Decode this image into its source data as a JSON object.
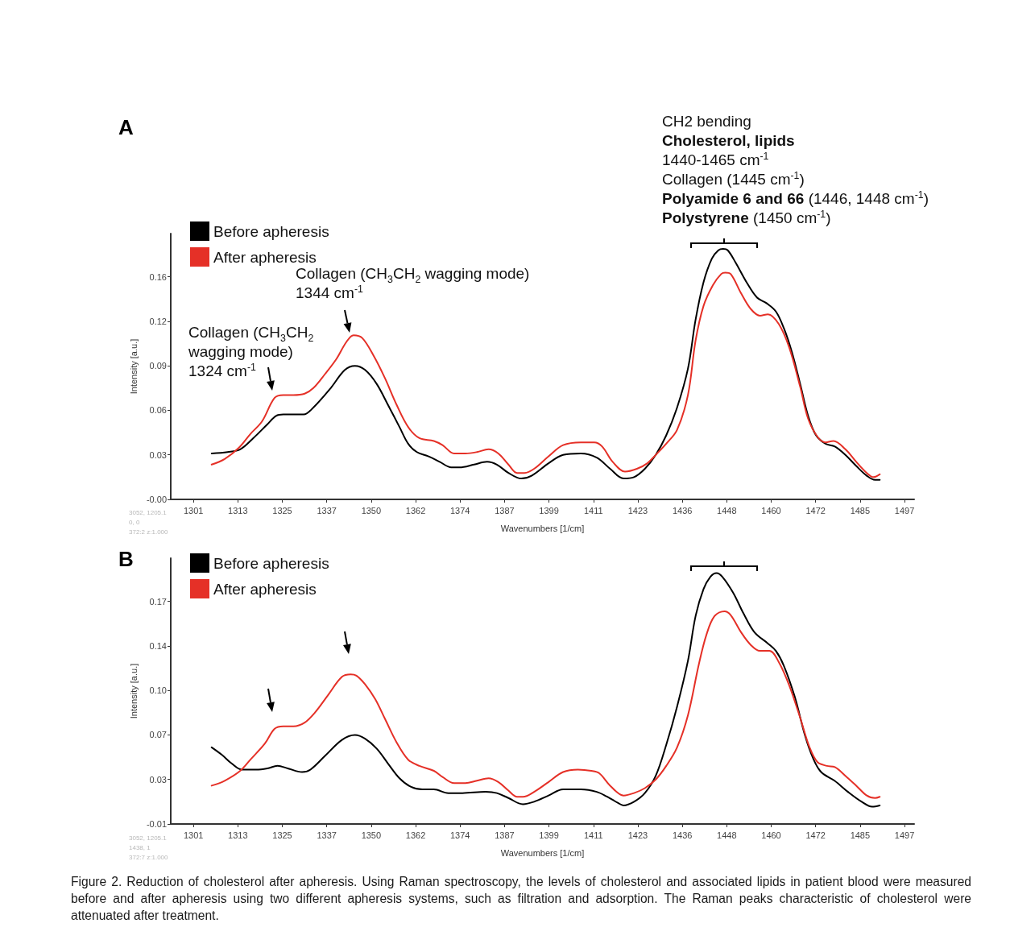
{
  "chart_data": [
    {
      "type": "line",
      "title": "A",
      "xlabel": "Wavenumbers [1/cm]",
      "ylabel": "Intensity [a.u.]",
      "xlim": [
        1294.3,
        1499.7
      ],
      "ylim": [
        -0.004,
        0.187
      ],
      "xticks": [
        {
          "value": 1300.56,
          "label": "1301"
        },
        {
          "value": 1312.84,
          "label": "1313"
        },
        {
          "value": 1325.12,
          "label": "1325"
        },
        {
          "value": 1337.4,
          "label": "1337"
        },
        {
          "value": 1349.68,
          "label": "1350"
        },
        {
          "value": 1361.96,
          "label": "1362"
        },
        {
          "value": 1374.24,
          "label": "1374"
        },
        {
          "value": 1386.52,
          "label": "1387"
        },
        {
          "value": 1398.8,
          "label": "1399"
        },
        {
          "value": 1411.08,
          "label": "1411"
        },
        {
          "value": 1423.36,
          "label": "1423"
        },
        {
          "value": 1435.64,
          "label": "1436"
        },
        {
          "value": 1447.92,
          "label": "1448"
        },
        {
          "value": 1460.2,
          "label": "1460"
        },
        {
          "value": 1472.48,
          "label": "1472"
        },
        {
          "value": 1484.76,
          "label": "1485"
        },
        {
          "value": 1497.04,
          "label": "1497"
        }
      ],
      "yticks": [
        {
          "value": -0.004,
          "label": "-0.00"
        },
        {
          "value": 0.028,
          "label": "0.03"
        },
        0.06,
        {
          "value": 0.092,
          "label": "0.09"
        },
        {
          "value": 0.124,
          "label": "0.12"
        },
        {
          "value": 0.156,
          "label": "0.16"
        }
      ],
      "legend": "top left",
      "series": [
        {
          "name": "Before apheresis",
          "color": "#000000",
          "x": [
            1305.6,
            1310.0,
            1313.5,
            1317.1,
            1321.0,
            1323.4,
            1325.4,
            1328.2,
            1331.0,
            1333.7,
            1338.5,
            1342.4,
            1345.2,
            1348.0,
            1351.2,
            1354.3,
            1357.5,
            1359.9,
            1362.3,
            1365.4,
            1368.6,
            1371.8,
            1374.1,
            1378.1,
            1381.7,
            1384.4,
            1387.6,
            1391.2,
            1394.0,
            1398.7,
            1402.7,
            1407.6,
            1412.0,
            1415.7,
            1419.4,
            1422.3,
            1425.3,
            1428.3,
            1431.2,
            1434.2,
            1437.2,
            1439.3,
            1441.5,
            1443.8,
            1445.6,
            1446.9,
            1448.2,
            1450.4,
            1453.4,
            1456.3,
            1458.9,
            1461.5,
            1463.7,
            1465.9,
            1468.2,
            1470.4,
            1472.6,
            1475.2,
            1477.8,
            1480.7,
            1483.7,
            1486.6,
            1488.9,
            1490.2
          ],
          "values": [
            0.029,
            0.03,
            0.032,
            0.04,
            0.05,
            0.056,
            0.057,
            0.057,
            0.057,
            0.062,
            0.076,
            0.089,
            0.092,
            0.089,
            0.079,
            0.064,
            0.048,
            0.036,
            0.03,
            0.027,
            0.023,
            0.019,
            0.019,
            0.021,
            0.023,
            0.021,
            0.015,
            0.011,
            0.013,
            0.022,
            0.028,
            0.029,
            0.026,
            0.018,
            0.011,
            0.012,
            0.018,
            0.028,
            0.042,
            0.062,
            0.09,
            0.125,
            0.152,
            0.169,
            0.175,
            0.176,
            0.175,
            0.166,
            0.152,
            0.141,
            0.137,
            0.131,
            0.119,
            0.102,
            0.079,
            0.056,
            0.042,
            0.036,
            0.034,
            0.028,
            0.02,
            0.013,
            0.01,
            0.01
          ]
        },
        {
          "name": "After apheresis",
          "color": "#e53027",
          "x": [
            1305.6,
            1309.2,
            1313.1,
            1316.3,
            1319.5,
            1323.0,
            1325.4,
            1328.2,
            1331.3,
            1333.7,
            1336.9,
            1340.1,
            1342.8,
            1344.8,
            1347.2,
            1350.4,
            1353.5,
            1356.7,
            1359.9,
            1363.0,
            1367.0,
            1369.4,
            1372.6,
            1375.7,
            1378.9,
            1382.1,
            1384.8,
            1387.6,
            1390.0,
            1392.0,
            1394.7,
            1398.7,
            1402.7,
            1407.6,
            1411.3,
            1413.5,
            1416.4,
            1419.8,
            1423.1,
            1426.0,
            1428.3,
            1431.2,
            1434.2,
            1437.2,
            1439.3,
            1441.5,
            1444.1,
            1446.4,
            1447.5,
            1449.0,
            1451.9,
            1454.5,
            1457.1,
            1459.3,
            1462.3,
            1465.2,
            1468.2,
            1470.4,
            1473.0,
            1475.2,
            1477.4,
            1480.7,
            1483.7,
            1486.6,
            1488.5,
            1490.2
          ],
          "values": [
            0.021,
            0.025,
            0.033,
            0.043,
            0.052,
            0.069,
            0.071,
            0.071,
            0.072,
            0.076,
            0.086,
            0.097,
            0.109,
            0.114,
            0.112,
            0.099,
            0.083,
            0.064,
            0.048,
            0.04,
            0.038,
            0.035,
            0.029,
            0.029,
            0.03,
            0.032,
            0.029,
            0.021,
            0.015,
            0.015,
            0.018,
            0.027,
            0.035,
            0.037,
            0.037,
            0.034,
            0.023,
            0.016,
            0.018,
            0.022,
            0.028,
            0.036,
            0.046,
            0.071,
            0.11,
            0.135,
            0.15,
            0.158,
            0.159,
            0.158,
            0.144,
            0.133,
            0.128,
            0.129,
            0.122,
            0.105,
            0.077,
            0.054,
            0.041,
            0.037,
            0.038,
            0.032,
            0.023,
            0.015,
            0.012,
            0.014
          ]
        }
      ],
      "annotations": [
        "CH2 bending",
        "Cholesterol, lipids",
        "1440-1465 cm$^{-1}$",
        "Collagen (1445 cm$^{-1}$)",
        "Polyamide 6 and 66",
        "(1446, 1448 cm$^{-1}$)",
        "Polystyrene",
        "(1450 cm$^{-1}$)",
        "Collagen (CH$_{3}$CH$_{2}$ wagging mode) 1344 cm$^{-1}$",
        "Collagen (CH$_{3}$CH$_{2}$ wagging mode) 1324 cm$^{-1}$",
        "3052, 1205.1",
        "0, 0",
        "372:2 z:1.000"
      ]
    },
    {
      "type": "line",
      "title": "B",
      "xlabel": "Wavenumbers [1/cm]",
      "ylabel": "Intensity [a.u.]",
      "xlim": [
        1294.3,
        1499.7
      ],
      "ylim": [
        -0.006,
        0.209
      ],
      "xticks": [
        {
          "value": 1300.56,
          "label": "1301"
        },
        {
          "value": 1312.84,
          "label": "1313"
        },
        {
          "value": 1325.12,
          "label": "1325"
        },
        {
          "value": 1337.4,
          "label": "1337"
        },
        {
          "value": 1349.68,
          "label": "1350"
        },
        {
          "value": 1361.96,
          "label": "1362"
        },
        {
          "value": 1374.24,
          "label": "1374"
        },
        {
          "value": 1386.52,
          "label": "1387"
        },
        {
          "value": 1398.8,
          "label": "1399"
        },
        {
          "value": 1411.08,
          "label": "1411"
        },
        {
          "value": 1423.36,
          "label": "1423"
        },
        {
          "value": 1435.64,
          "label": "1436"
        },
        {
          "value": 1447.92,
          "label": "1448"
        },
        {
          "value": 1460.2,
          "label": "1460"
        },
        {
          "value": 1472.48,
          "label": "1472"
        },
        {
          "value": 1484.76,
          "label": "1485"
        },
        {
          "value": 1497.04,
          "label": "1497"
        }
      ],
      "yticks": [
        {
          "value": -0.006,
          "label": "-0.01"
        },
        0.03,
        {
          "value": 0.066,
          "label": "0.07"
        },
        {
          "value": 0.102,
          "label": "0.10"
        },
        {
          "value": 0.138,
          "label": "0.14"
        },
        {
          "value": 0.174,
          "label": "0.17"
        }
      ],
      "legend": "top left",
      "series": [
        {
          "name": "Before apheresis",
          "color": "#000000",
          "x": [
            1305.6,
            1308.4,
            1311.1,
            1313.9,
            1317.9,
            1321.0,
            1323.8,
            1326.6,
            1330.6,
            1332.9,
            1336.9,
            1341.6,
            1345.2,
            1348.0,
            1351.2,
            1354.3,
            1357.5,
            1360.7,
            1363.8,
            1367.0,
            1371.0,
            1374.9,
            1381.3,
            1384.4,
            1387.6,
            1391.6,
            1394.7,
            1398.7,
            1402.7,
            1407.6,
            1412.0,
            1414.9,
            1417.9,
            1419.4,
            1422.3,
            1425.3,
            1428.3,
            1431.2,
            1434.2,
            1437.2,
            1439.3,
            1441.5,
            1443.4,
            1445.1,
            1446.7,
            1449.7,
            1452.6,
            1455.6,
            1459.3,
            1461.5,
            1463.7,
            1466.7,
            1469.6,
            1471.8,
            1474.0,
            1477.7,
            1481.4,
            1485.2,
            1488.1,
            1490.2
          ],
          "values": [
            0.056,
            0.05,
            0.043,
            0.038,
            0.038,
            0.039,
            0.041,
            0.039,
            0.036,
            0.038,
            0.049,
            0.062,
            0.066,
            0.063,
            0.055,
            0.043,
            0.031,
            0.024,
            0.022,
            0.022,
            0.019,
            0.019,
            0.02,
            0.019,
            0.015,
            0.01,
            0.012,
            0.017,
            0.022,
            0.022,
            0.02,
            0.016,
            0.011,
            0.009,
            0.012,
            0.019,
            0.033,
            0.058,
            0.089,
            0.126,
            0.162,
            0.184,
            0.194,
            0.197,
            0.194,
            0.181,
            0.164,
            0.149,
            0.14,
            0.134,
            0.122,
            0.097,
            0.065,
            0.047,
            0.036,
            0.029,
            0.02,
            0.012,
            0.008,
            0.009
          ]
        },
        {
          "name": "After apheresis",
          "color": "#e53027",
          "x": [
            1305.6,
            1309.2,
            1313.5,
            1316.3,
            1320.3,
            1323.0,
            1325.4,
            1328.2,
            1331.3,
            1334.1,
            1337.7,
            1341.6,
            1344.0,
            1345.6,
            1348.0,
            1350.8,
            1353.5,
            1356.7,
            1359.9,
            1363.0,
            1367.0,
            1369.4,
            1372.6,
            1375.7,
            1378.9,
            1382.1,
            1384.8,
            1387.6,
            1390.0,
            1391.6,
            1394.7,
            1398.7,
            1402.7,
            1406.8,
            1410.5,
            1412.7,
            1415.7,
            1419.4,
            1422.3,
            1425.3,
            1428.3,
            1431.2,
            1434.2,
            1437.2,
            1440.2,
            1442.3,
            1444.5,
            1447.3,
            1449.0,
            1451.9,
            1454.5,
            1457.1,
            1459.7,
            1462.3,
            1465.2,
            1468.2,
            1470.8,
            1473.0,
            1475.6,
            1477.8,
            1480.7,
            1483.7,
            1486.6,
            1488.9,
            1490.2
          ],
          "values": [
            0.025,
            0.029,
            0.037,
            0.046,
            0.059,
            0.071,
            0.073,
            0.073,
            0.076,
            0.084,
            0.098,
            0.113,
            0.115,
            0.114,
            0.107,
            0.095,
            0.079,
            0.06,
            0.046,
            0.041,
            0.037,
            0.032,
            0.027,
            0.027,
            0.029,
            0.031,
            0.028,
            0.021,
            0.016,
            0.016,
            0.02,
            0.028,
            0.036,
            0.038,
            0.037,
            0.035,
            0.025,
            0.017,
            0.019,
            0.023,
            0.03,
            0.041,
            0.056,
            0.082,
            0.123,
            0.147,
            0.162,
            0.166,
            0.163,
            0.149,
            0.139,
            0.134,
            0.134,
            0.125,
            0.106,
            0.08,
            0.056,
            0.044,
            0.041,
            0.04,
            0.033,
            0.025,
            0.017,
            0.015,
            0.016
          ]
        }
      ],
      "annotations": [
        "Figure 2. Reduction of cholesterol after apheresis. Using Raman spectroscopy, the levels of cholesterol and associated lipids in patient blood were measured before and after apheresis using two different apheresis systems, such as filtration and adsorption. The Raman peaks characteristic of cholesterol were attenuated after treatment.",
        "3052, 1205.1",
        "1438, 1",
        "372:7 z:1.000"
      ]
    }
  ]
}
